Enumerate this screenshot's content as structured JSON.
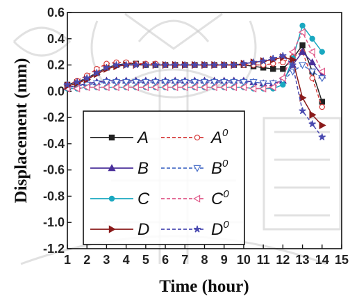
{
  "chart_data": {
    "type": "line",
    "xlabel": "Time (hour)",
    "ylabel": "Displacement (mm)",
    "xlim": [
      1,
      15
    ],
    "ylim": [
      -1.2,
      0.6
    ],
    "xticks": [
      "1",
      "2",
      "3",
      "4",
      "5",
      "6",
      "7",
      "8",
      "9",
      "10",
      "11",
      "12",
      "13",
      "14",
      "15"
    ],
    "yticks": [
      "0.6",
      "0.4",
      "0.2",
      "0.0",
      "-0.2",
      "-0.4",
      "-0.6",
      "-0.8",
      "-1.0",
      "-1.2"
    ],
    "grid": false,
    "legend_position": "bottom-left",
    "series": [
      {
        "name": "A",
        "color": "#222222",
        "dash": "solid",
        "marker": "square",
        "x": [
          1,
          1.5,
          2,
          2.5,
          3,
          3.5,
          4,
          4.5,
          5,
          5.5,
          6,
          6.5,
          7,
          7.5,
          8,
          8.5,
          9,
          9.5,
          10,
          10.5,
          11,
          11.5,
          12,
          12.5,
          13,
          13.5,
          14
        ],
        "y": [
          0.05,
          0.07,
          0.1,
          0.14,
          0.18,
          0.2,
          0.21,
          0.21,
          0.2,
          0.2,
          0.2,
          0.2,
          0.2,
          0.2,
          0.2,
          0.2,
          0.2,
          0.2,
          0.2,
          0.19,
          0.18,
          0.17,
          0.17,
          0.25,
          0.35,
          0.15,
          -0.08
        ]
      },
      {
        "name": "A0",
        "label": "A",
        "sup": "0",
        "color": "#d63a3a",
        "dash": "dashed",
        "marker": "circle-open",
        "x": [
          1,
          1.5,
          2,
          2.5,
          3,
          3.5,
          4,
          4.5,
          5,
          5.5,
          6,
          6.5,
          7,
          7.5,
          8,
          8.5,
          9,
          9.5,
          10,
          10.5,
          11,
          11.5,
          12,
          12.5,
          13,
          13.5,
          14
        ],
        "y": [
          0.05,
          0.08,
          0.12,
          0.17,
          0.21,
          0.22,
          0.22,
          0.21,
          0.21,
          0.21,
          0.2,
          0.2,
          0.2,
          0.2,
          0.2,
          0.2,
          0.2,
          0.2,
          0.2,
          0.2,
          0.2,
          0.21,
          0.22,
          0.26,
          0.3,
          0.1,
          -0.12
        ]
      },
      {
        "name": "B",
        "color": "#4a2f9a",
        "dash": "solid",
        "marker": "triangle-up",
        "x": [
          1,
          1.5,
          2,
          2.5,
          3,
          3.5,
          4,
          4.5,
          5,
          5.5,
          6,
          6.5,
          7,
          7.5,
          8,
          8.5,
          9,
          9.5,
          10,
          10.5,
          11,
          11.5,
          12,
          12.5,
          13,
          13.5,
          14
        ],
        "y": [
          0.03,
          0.04,
          0.06,
          0.07,
          0.08,
          0.08,
          0.08,
          0.08,
          0.08,
          0.08,
          0.08,
          0.08,
          0.08,
          0.08,
          0.08,
          0.08,
          0.08,
          0.08,
          0.08,
          0.07,
          0.06,
          0.06,
          0.08,
          0.2,
          0.3,
          0.22,
          0.12
        ]
      },
      {
        "name": "B0",
        "label": "B",
        "sup": "0",
        "color": "#4a6fc8",
        "dash": "dashed",
        "marker": "triangle-down-open",
        "x": [
          1,
          1.5,
          2,
          2.5,
          3,
          3.5,
          4,
          4.5,
          5,
          5.5,
          6,
          6.5,
          7,
          7.5,
          8,
          8.5,
          9,
          9.5,
          10,
          10.5,
          11,
          11.5,
          12,
          12.5,
          13,
          13.5,
          14
        ],
        "y": [
          0.03,
          0.04,
          0.05,
          0.06,
          0.07,
          0.07,
          0.07,
          0.07,
          0.07,
          0.07,
          0.07,
          0.07,
          0.07,
          0.07,
          0.07,
          0.07,
          0.07,
          0.07,
          0.07,
          0.07,
          0.06,
          0.06,
          0.08,
          0.15,
          0.2,
          0.15,
          0.1
        ]
      },
      {
        "name": "C",
        "color": "#1aa8c0",
        "dash": "solid",
        "marker": "circle",
        "x": [
          1,
          1.5,
          2,
          2.5,
          3,
          3.5,
          4,
          4.5,
          5,
          5.5,
          6,
          6.5,
          7,
          7.5,
          8,
          8.5,
          9,
          9.5,
          10,
          10.5,
          11,
          11.5,
          12,
          12.5,
          13,
          13.5,
          14
        ],
        "y": [
          0.02,
          0.02,
          0.03,
          0.03,
          0.03,
          0.03,
          0.03,
          0.03,
          0.03,
          0.03,
          0.03,
          0.03,
          0.03,
          0.03,
          0.03,
          0.03,
          0.03,
          0.03,
          0.03,
          0.02,
          0.02,
          0.02,
          0.05,
          0.25,
          0.5,
          0.4,
          0.3
        ]
      },
      {
        "name": "C0",
        "label": "C",
        "sup": "0",
        "color": "#e05a8a",
        "dash": "dashed",
        "marker": "triangle-left-open",
        "x": [
          1,
          1.5,
          2,
          2.5,
          3,
          3.5,
          4,
          4.5,
          5,
          5.5,
          6,
          6.5,
          7,
          7.5,
          8,
          8.5,
          9,
          9.5,
          10,
          10.5,
          11,
          11.5,
          12,
          12.5,
          13,
          13.5,
          14
        ],
        "y": [
          0.02,
          0.02,
          0.03,
          0.03,
          0.03,
          0.03,
          0.03,
          0.03,
          0.03,
          0.03,
          0.03,
          0.03,
          0.03,
          0.03,
          0.03,
          0.03,
          0.03,
          0.03,
          0.03,
          0.02,
          0.02,
          0.03,
          0.1,
          0.3,
          0.45,
          0.3,
          0.15
        ]
      },
      {
        "name": "D",
        "color": "#8a1a1a",
        "dash": "solid",
        "marker": "triangle-right",
        "x": [
          1,
          1.5,
          2,
          2.5,
          3,
          3.5,
          4,
          4.5,
          5,
          5.5,
          6,
          6.5,
          7,
          7.5,
          8,
          8.5,
          9,
          9.5,
          10,
          10.5,
          11,
          11.5,
          12,
          12.5,
          13,
          13.5,
          14
        ],
        "y": [
          0.04,
          0.06,
          0.09,
          0.13,
          0.17,
          0.19,
          0.2,
          0.2,
          0.2,
          0.2,
          0.2,
          0.2,
          0.2,
          0.2,
          0.2,
          0.2,
          0.2,
          0.2,
          0.21,
          0.22,
          0.23,
          0.24,
          0.26,
          0.24,
          -0.05,
          -0.18,
          -0.26
        ]
      },
      {
        "name": "D0",
        "label": "D",
        "sup": "0",
        "color": "#4a4ab0",
        "dash": "dashed",
        "marker": "star",
        "x": [
          1,
          1.5,
          2,
          2.5,
          3,
          3.5,
          4,
          4.5,
          5,
          5.5,
          6,
          6.5,
          7,
          7.5,
          8,
          8.5,
          9,
          9.5,
          10,
          10.5,
          11,
          11.5,
          12,
          12.5,
          13,
          13.5,
          14
        ],
        "y": [
          0.05,
          0.07,
          0.1,
          0.14,
          0.18,
          0.2,
          0.2,
          0.2,
          0.2,
          0.2,
          0.2,
          0.2,
          0.2,
          0.2,
          0.2,
          0.2,
          0.2,
          0.2,
          0.21,
          0.22,
          0.23,
          0.25,
          0.27,
          0.2,
          -0.15,
          -0.25,
          -0.35
        ]
      }
    ],
    "legend_layout": [
      [
        "A",
        "A0"
      ],
      [
        "B",
        "B0"
      ],
      [
        "C",
        "C0"
      ],
      [
        "D",
        "D0"
      ]
    ]
  }
}
